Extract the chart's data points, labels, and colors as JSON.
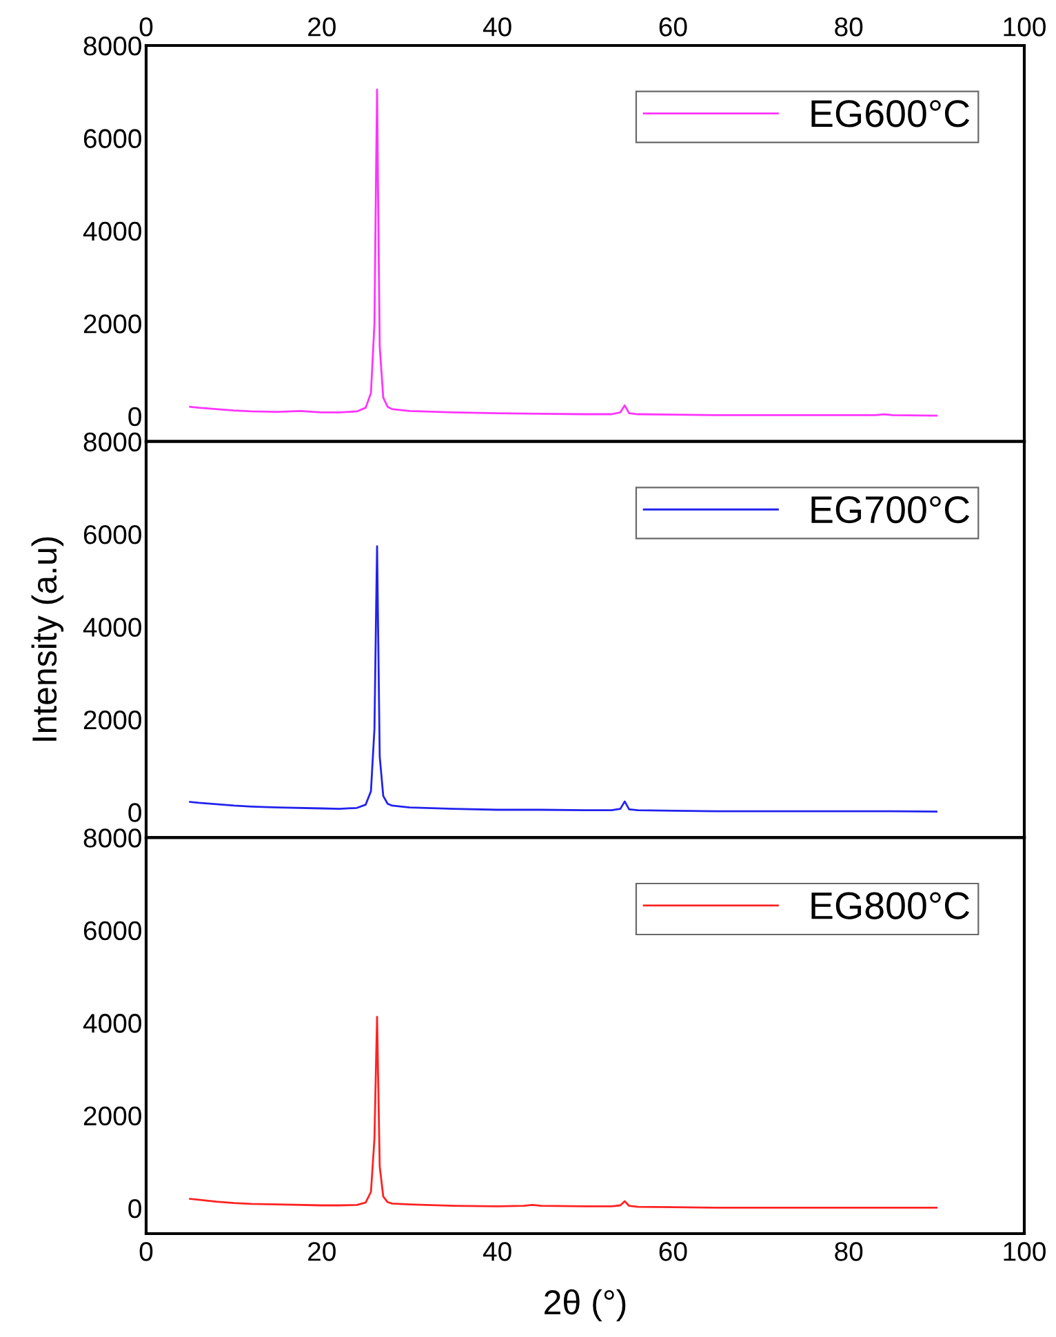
{
  "chart_data": [
    {
      "type": "line",
      "xlim": [
        0,
        100
      ],
      "xticks": [
        0,
        20,
        40,
        60,
        80,
        100
      ],
      "x2lim": [
        0,
        100
      ],
      "x2ticks": [
        0,
        20,
        40,
        60,
        80,
        100
      ],
      "ylim": [
        -550,
        8000
      ],
      "yticks": [
        0,
        2000,
        4000,
        6000,
        8000
      ],
      "tick_labels": "y",
      "grid": false,
      "legend": "top right",
      "marker": "none",
      "line_style": "solid",
      "series": [
        {
          "name": "EG600°C",
          "color": "#ff33ff",
          "x": [
            5,
            6,
            8,
            10,
            12,
            15,
            17.5,
            20,
            22,
            24,
            25,
            25.6,
            26.0,
            26.2,
            26.3,
            26.4,
            26.6,
            27,
            27.5,
            28,
            30,
            35,
            40,
            45,
            50,
            53,
            54,
            54.5,
            55,
            56,
            60,
            65,
            70,
            75,
            80,
            83,
            84,
            85,
            90
          ],
          "values": [
            200,
            180,
            150,
            120,
            100,
            90,
            110,
            80,
            80,
            100,
            180,
            500,
            2000,
            5500,
            7050,
            5000,
            1500,
            400,
            200,
            150,
            110,
            80,
            60,
            50,
            40,
            40,
            80,
            230,
            60,
            40,
            30,
            20,
            20,
            20,
            20,
            20,
            40,
            20,
            10
          ]
        }
      ]
    },
    {
      "type": "line",
      "xlim": [
        0,
        100
      ],
      "xticks": [
        0,
        20,
        40,
        60,
        80,
        100
      ],
      "ylim": [
        -550,
        8000
      ],
      "yticks": [
        0,
        2000,
        4000,
        6000,
        8000
      ],
      "tick_labels": "y",
      "ylabel": "Intensity (a.u)",
      "grid": false,
      "legend": "top right",
      "marker": "none",
      "line_style": "solid",
      "series": [
        {
          "name": "EG700°C",
          "color": "#2222ee",
          "x": [
            5,
            6,
            8,
            10,
            12,
            15,
            20,
            22,
            24,
            25,
            25.6,
            26.0,
            26.2,
            26.3,
            26.4,
            26.6,
            27,
            27.5,
            28,
            30,
            35,
            40,
            45,
            50,
            53,
            54,
            54.5,
            55,
            56,
            60,
            65,
            70,
            75,
            80,
            85,
            90
          ],
          "values": [
            220,
            200,
            170,
            140,
            120,
            100,
            80,
            70,
            90,
            160,
            450,
            1800,
            4500,
            5740,
            4200,
            1200,
            350,
            180,
            140,
            100,
            70,
            50,
            50,
            40,
            40,
            70,
            230,
            60,
            40,
            30,
            20,
            20,
            20,
            20,
            20,
            10
          ]
        }
      ]
    },
    {
      "type": "line",
      "xlim": [
        0,
        100
      ],
      "xticks": [
        0,
        20,
        40,
        60,
        80,
        100
      ],
      "ylim": [
        -550,
        8000
      ],
      "yticks": [
        0,
        2000,
        4000,
        6000,
        8000
      ],
      "xlabel": "2θ (°)",
      "grid": false,
      "legend": "top right",
      "marker": "none",
      "line_style": "solid",
      "series": [
        {
          "name": "EG800°C",
          "color": "#ff2222",
          "x": [
            5,
            6,
            8,
            10,
            12,
            15,
            20,
            22,
            24,
            25,
            25.6,
            26.0,
            26.2,
            26.3,
            26.4,
            26.6,
            27,
            27.5,
            28,
            30,
            35,
            40,
            43,
            44,
            45,
            50,
            53,
            54,
            54.5,
            55,
            56,
            60,
            65,
            70,
            75,
            80,
            85,
            90
          ],
          "values": [
            200,
            180,
            140,
            110,
            90,
            80,
            60,
            60,
            70,
            120,
            350,
            1500,
            3300,
            4130,
            3000,
            900,
            250,
            130,
            100,
            80,
            50,
            40,
            50,
            70,
            50,
            40,
            40,
            60,
            150,
            50,
            30,
            20,
            10,
            10,
            10,
            10,
            10,
            10
          ]
        }
      ]
    }
  ]
}
